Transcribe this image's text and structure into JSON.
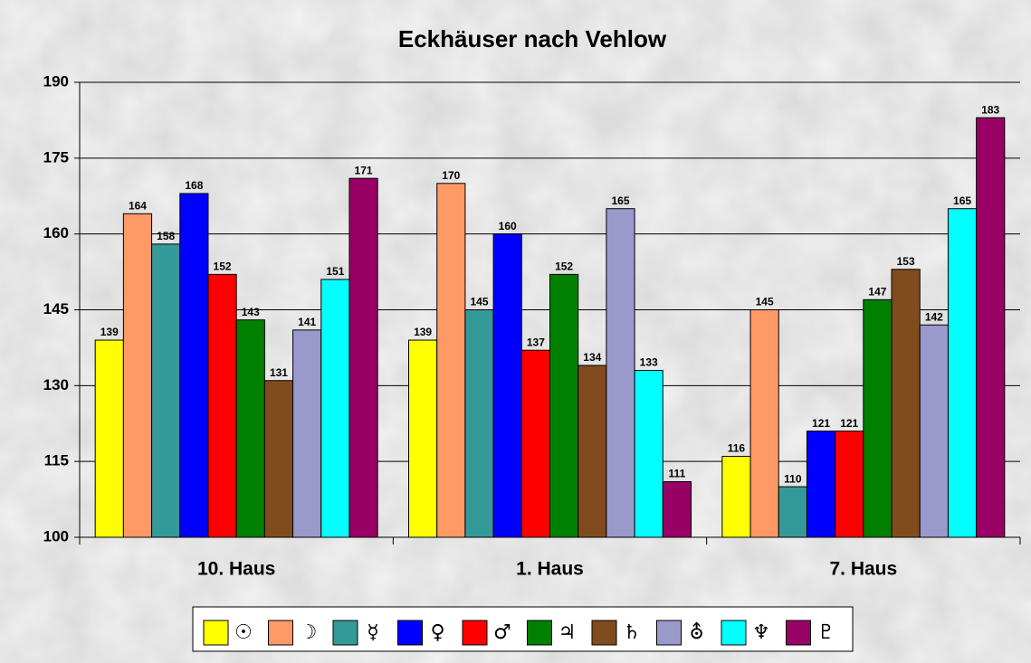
{
  "chart_data": {
    "type": "bar",
    "title": "Eckhäuser nach Vehlow",
    "categories": [
      "10. Haus",
      "1. Haus",
      "7. Haus"
    ],
    "series": [
      {
        "name": "☉",
        "color": "#ffff00",
        "values": [
          139,
          139,
          116
        ]
      },
      {
        "name": "☽",
        "color": "#ff9966",
        "values": [
          164,
          170,
          145
        ]
      },
      {
        "name": "☿",
        "color": "#339999",
        "values": [
          158,
          145,
          110
        ]
      },
      {
        "name": "♀",
        "color": "#0000ff",
        "values": [
          168,
          160,
          121
        ]
      },
      {
        "name": "♂",
        "color": "#ff0000",
        "values": [
          152,
          137,
          121
        ]
      },
      {
        "name": "♃",
        "color": "#008000",
        "values": [
          143,
          152,
          147
        ]
      },
      {
        "name": "♄",
        "color": "#804c1e",
        "values": [
          131,
          134,
          153
        ]
      },
      {
        "name": "⛢",
        "color": "#9999cc",
        "values": [
          141,
          165,
          142
        ]
      },
      {
        "name": "♆",
        "color": "#00ffff",
        "values": [
          151,
          133,
          165
        ]
      },
      {
        "name": "♇",
        "color": "#990066",
        "values": [
          171,
          111,
          183
        ]
      }
    ],
    "ylim": [
      100,
      190
    ],
    "yticks": [
      100,
      115,
      130,
      145,
      160,
      175,
      190
    ],
    "grid": true
  }
}
